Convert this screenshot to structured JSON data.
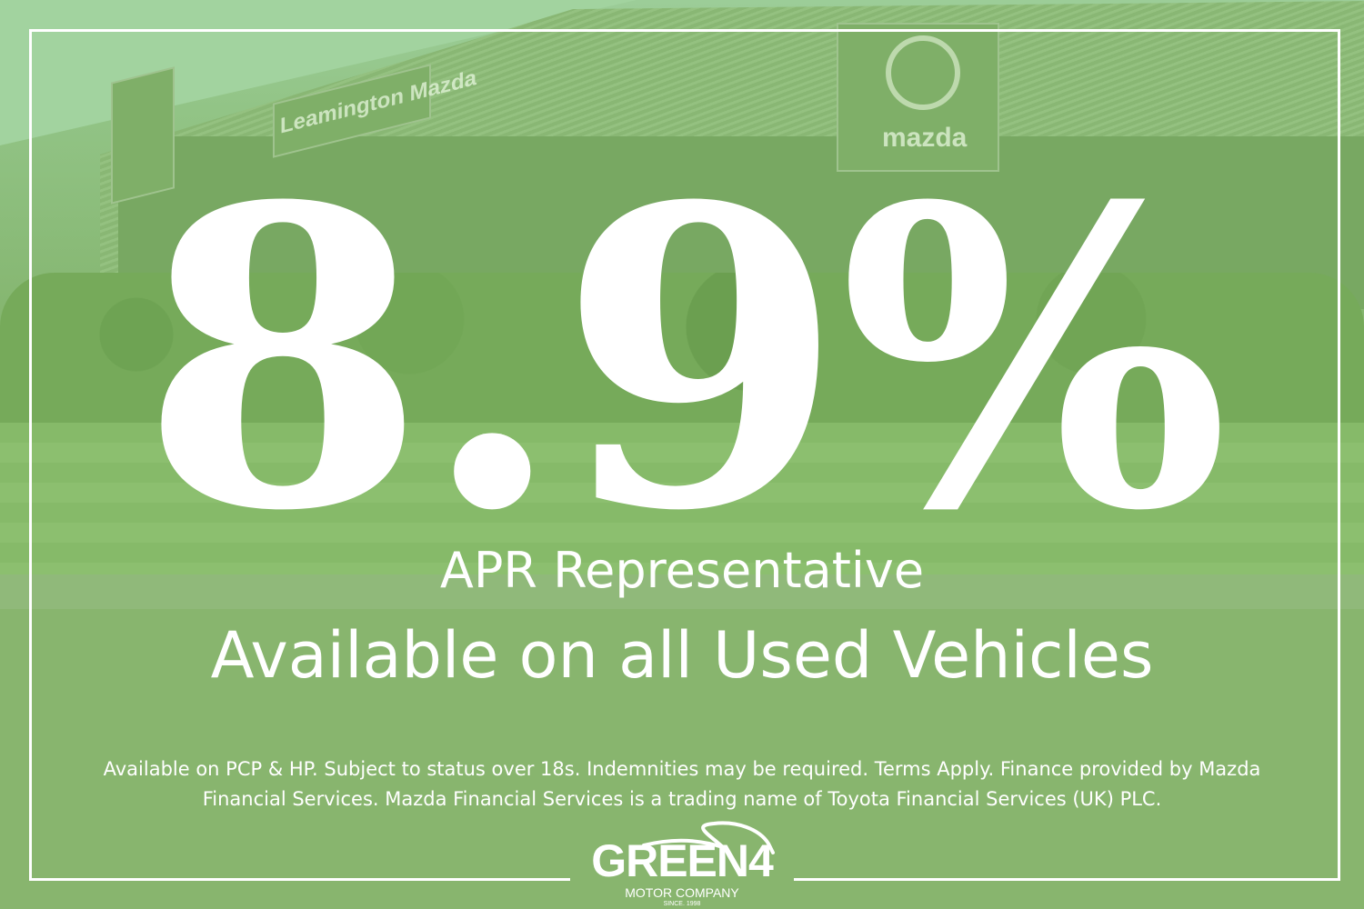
{
  "background": {
    "scene": "car dealership with hedges and lawn, green tint",
    "tint_color": "#86b96b",
    "signage": [
      "Leamington Mazda",
      "mazda"
    ]
  },
  "headline": {
    "rate": "8.9%",
    "subtitle": "APR Representative",
    "tagline": "Available on all Used Vehicles"
  },
  "disclaimer": {
    "line1": "Available on PCP & HP. Subject to status over 18s. Indemnities may be required. Terms Apply. Finance provided by Mazda",
    "line2": "Financial Services. Mazda Financial Services is a trading name of Toyota Financial Services (UK) PLC."
  },
  "logo": {
    "name": "GREEN4",
    "subtitle": "MOTOR COMPANY",
    "since": "SINCE. 1998"
  },
  "colors": {
    "text": "#ffffff",
    "frame": "#ffffff"
  }
}
